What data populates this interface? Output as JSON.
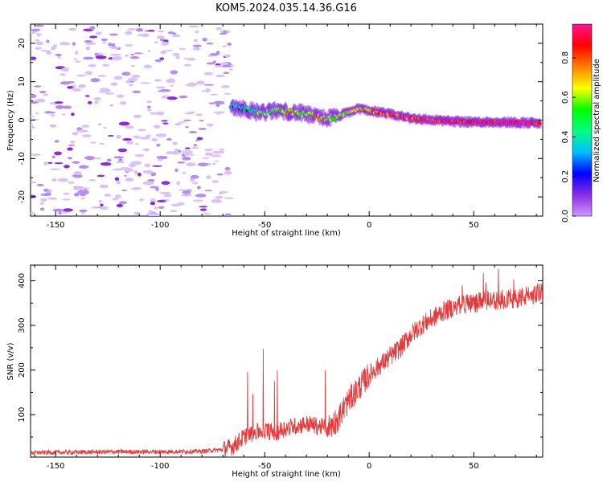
{
  "title": "KOM5.2024.035.14.36.G16",
  "chart_data": [
    {
      "type": "heatmap",
      "xlabel": "Height of straight line (km)",
      "ylabel": "Frequency (Hz)",
      "xlim": [
        -162,
        83
      ],
      "ylim": [
        -25,
        25
      ],
      "xticks": [
        -150,
        -100,
        -50,
        0,
        50
      ],
      "yticks": [
        -20,
        -10,
        0,
        10,
        20
      ],
      "grid": false,
      "colorbar": {
        "label": "Normalized spectral amplitude",
        "ticks": [
          0.0,
          0.2,
          0.4,
          0.6,
          0.8
        ],
        "range": [
          0,
          0.97
        ],
        "colormap": [
          "#cc99ff",
          "#8a2be2",
          "#0000ff",
          "#00bfff",
          "#00ff7f",
          "#00ff00",
          "#ffff00",
          "#ff8000",
          "#ff0000",
          "#ff1493"
        ]
      },
      "dominant_frequency_trace": {
        "x": [
          -66,
          -60,
          -55,
          -50,
          -45,
          -40,
          -35,
          -30,
          -25,
          -20,
          -15,
          -10,
          -5,
          0,
          10,
          20,
          30,
          40,
          50,
          60,
          70,
          82
        ],
        "y": [
          3.5,
          3.0,
          2.2,
          2.0,
          2.5,
          2.2,
          2.0,
          1.5,
          0.8,
          0.5,
          1.0,
          2.0,
          3.0,
          2.5,
          1.5,
          0.5,
          0.0,
          -0.3,
          -0.5,
          -0.5,
          -0.6,
          -0.8
        ],
        "amplitude": [
          0.3,
          0.35,
          0.45,
          0.5,
          0.55,
          0.6,
          0.55,
          0.6,
          0.65,
          0.55,
          0.5,
          0.6,
          0.65,
          0.7,
          0.8,
          0.85,
          0.9,
          0.92,
          0.95,
          0.95,
          0.96,
          0.96
        ]
      },
      "noise_region": {
        "x_range": [
          -162,
          -66
        ],
        "amplitude": 0.05
      }
    },
    {
      "type": "line",
      "xlabel": "Height of straight line (km)",
      "ylabel": "SNR (v/v)",
      "xlim": [
        -162,
        83
      ],
      "ylim": [
        5,
        435
      ],
      "xticks": [
        -150,
        -100,
        -50,
        0,
        50
      ],
      "yticks": [
        100,
        200,
        300,
        400
      ],
      "grid": false,
      "color": "#e83a3a",
      "series": [
        {
          "x": [
            -162,
            -140,
            -120,
            -100,
            -80,
            -70,
            -65,
            -60,
            -55,
            -50,
            -45,
            -40,
            -35,
            -30,
            -25,
            -20,
            -15,
            -10,
            -5,
            0,
            5,
            10,
            15,
            20,
            25,
            30,
            35,
            40,
            45,
            50,
            55,
            60,
            65,
            70,
            75,
            80,
            83
          ],
          "values": [
            15,
            16,
            17,
            17,
            18,
            22,
            30,
            50,
            60,
            65,
            60,
            70,
            75,
            80,
            75,
            70,
            90,
            130,
            160,
            190,
            210,
            230,
            250,
            280,
            300,
            315,
            330,
            340,
            350,
            350,
            355,
            355,
            360,
            360,
            365,
            370,
            380
          ]
        }
      ]
    }
  ]
}
